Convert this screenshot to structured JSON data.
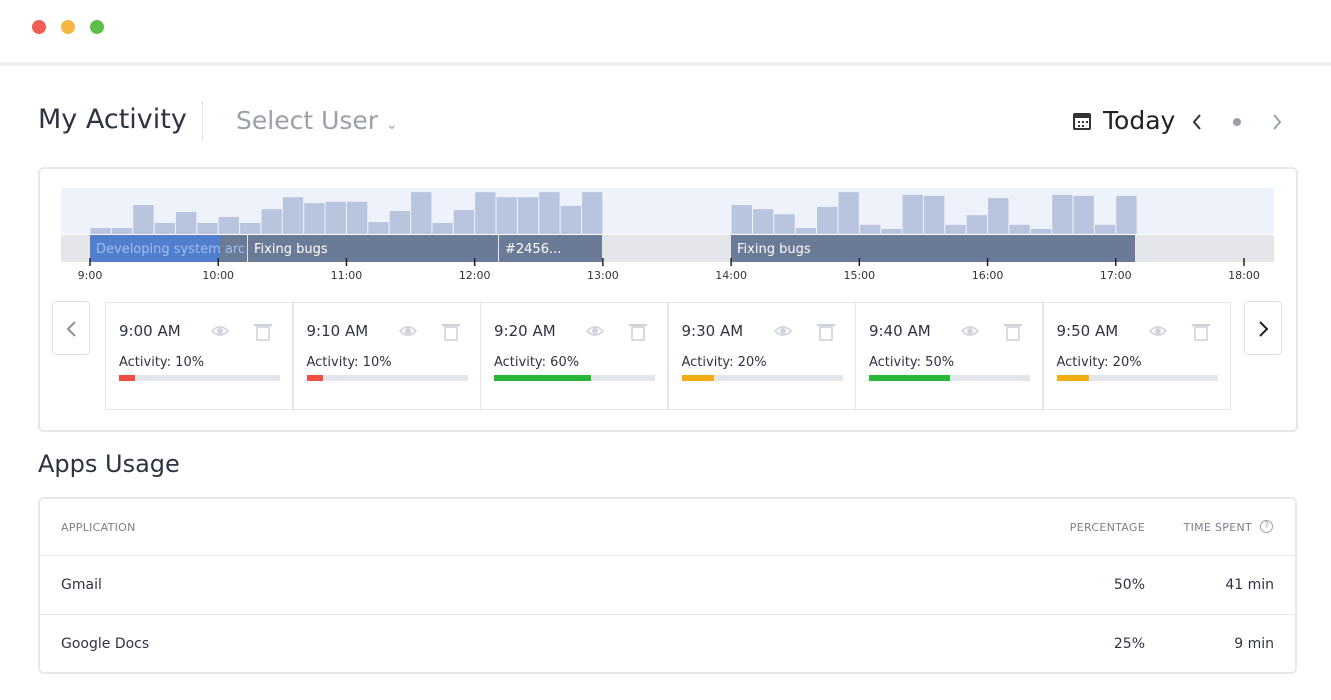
{
  "header": {
    "title": "My Activity",
    "user_select": "Select User",
    "date_label": "Today"
  },
  "timeline": {
    "activity_bars": [
      13,
      13,
      63,
      24,
      48,
      24,
      37,
      24,
      54,
      80,
      67,
      70,
      70,
      26,
      50,
      91,
      24,
      52,
      91,
      80,
      80,
      91,
      61,
      91,
      null,
      null,
      null,
      null,
      null,
      null,
      63,
      54,
      43,
      13,
      59,
      91,
      20,
      11,
      85,
      83,
      20,
      41,
      78,
      20,
      11,
      85,
      83,
      20,
      83,
      null,
      null,
      null,
      null,
      null
    ],
    "tasks": [
      "Developing system arc...",
      "Fixing bugs",
      "#2456...",
      "Fixing bugs"
    ],
    "hours": [
      "9:00",
      "10:00",
      "11:00",
      "12:00",
      "13:00",
      "14:00",
      "15:00",
      "16:00",
      "17:00",
      "18:00"
    ]
  },
  "cards": [
    {
      "time": "9:00 AM",
      "activity": {
        "value": 10,
        "label": "Activity: 10%"
      },
      "color": "#f04e45"
    },
    {
      "time": "9:10 AM",
      "activity": {
        "value": 10,
        "label": "Activity: 10%"
      },
      "color": "#f04e45"
    },
    {
      "time": "9:20 AM",
      "activity": {
        "value": 60,
        "label": "Activity: 60%"
      },
      "color": "#27b83a"
    },
    {
      "time": "9:30 AM",
      "activity": {
        "value": 20,
        "label": "Activity: 20%"
      },
      "color": "#f5ad14"
    },
    {
      "time": "9:40 AM",
      "activity": {
        "value": 50,
        "label": "Activity: 50%"
      },
      "color": "#27b83a"
    },
    {
      "time": "9:50 AM",
      "activity": {
        "value": 20,
        "label": "Activity: 20%"
      },
      "color": "#f5ad14"
    }
  ],
  "apps_usage": {
    "title": "Apps Usage",
    "table": {
      "columns": [
        "APPLICATION",
        "PERCENTAGE",
        "TIME SPENT"
      ],
      "rows": [
        [
          "Gmail",
          "50%",
          "41 min"
        ],
        [
          "Google Docs",
          "25%",
          "9 min"
        ]
      ]
    }
  }
}
